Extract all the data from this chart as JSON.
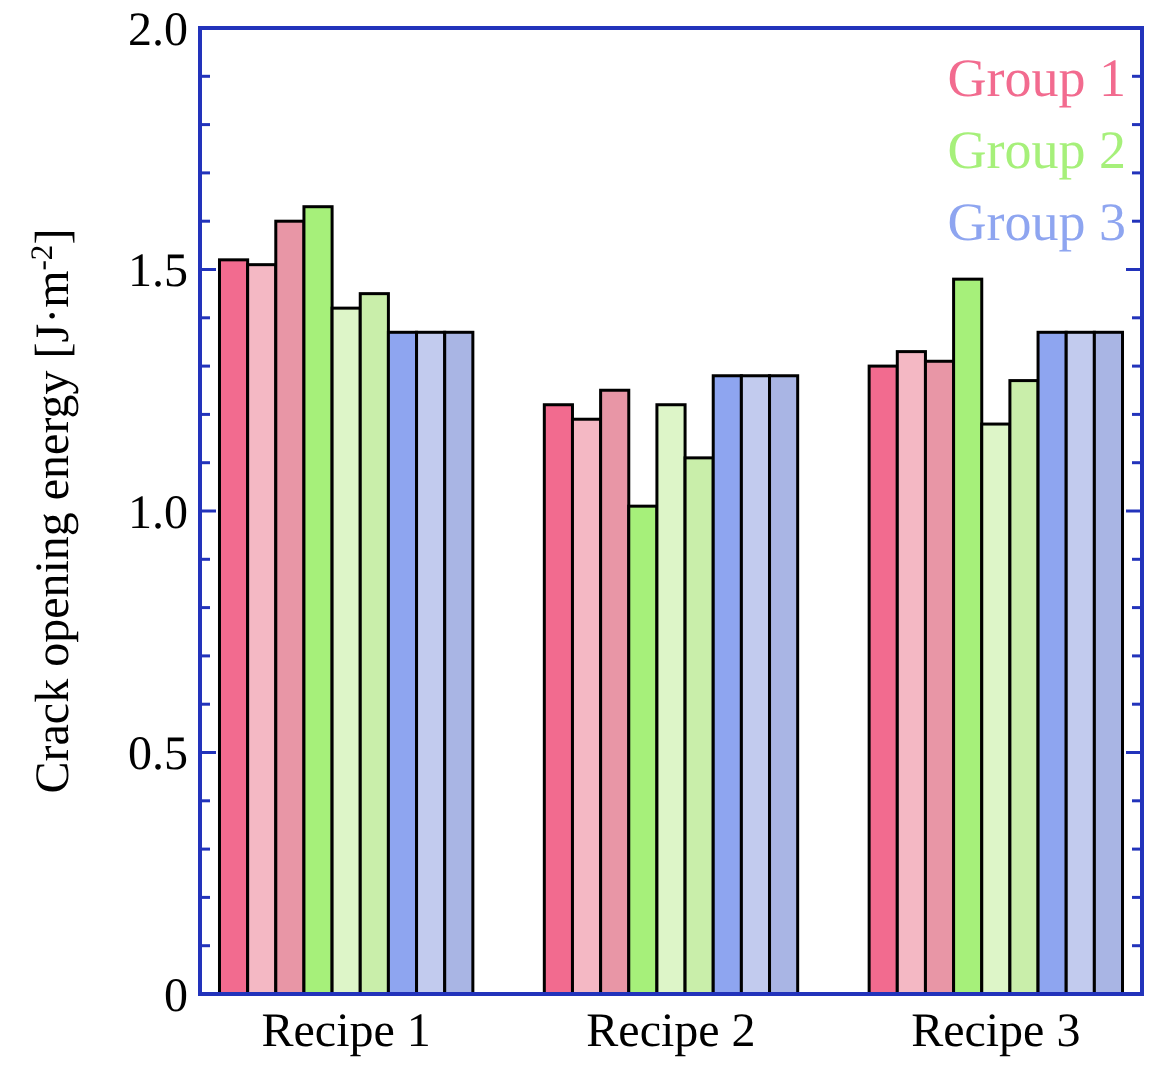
{
  "chart_data": {
    "type": "bar",
    "ylabel": "Crack opening energy [J·m$^{-2}$]",
    "categories": [
      "Recipe 1",
      "Recipe 2",
      "Recipe 3"
    ],
    "series": [
      {
        "name": "Group 1",
        "color": "#f26b8f",
        "values": [
          1.52,
          1.22,
          1.3
        ]
      },
      {
        "color": "#f4b8c4",
        "values": [
          1.51,
          1.19,
          1.33
        ]
      },
      {
        "color": "#e896a6",
        "values": [
          1.6,
          1.25,
          1.31
        ]
      },
      {
        "name": "Group 2",
        "color": "#a6f07a",
        "values": [
          1.63,
          1.01,
          1.48
        ]
      },
      {
        "color": "#ddf5c8",
        "values": [
          1.42,
          1.22,
          1.18
        ]
      },
      {
        "color": "#c9eeaa",
        "values": [
          1.45,
          1.11,
          1.27
        ]
      },
      {
        "name": "Group 3",
        "color": "#8ea5f0",
        "values": [
          1.37,
          1.28,
          1.37
        ]
      },
      {
        "color": "#c2cbee",
        "values": [
          1.37,
          1.28,
          1.37
        ]
      },
      {
        "color": "#a9b5e4",
        "values": [
          1.37,
          1.28,
          1.37
        ]
      }
    ],
    "ylim": [
      0,
      2
    ],
    "yticks": [
      0,
      {
        "value": 0.1,
        "label": null
      },
      {
        "value": 0.2,
        "label": null
      },
      {
        "value": 0.3,
        "label": null
      },
      {
        "value": 0.4,
        "label": null
      },
      {
        "value": 0.5,
        "label": "0.5"
      },
      {
        "value": 0.6,
        "label": null
      },
      {
        "value": 0.7,
        "label": null
      },
      {
        "value": 0.8,
        "label": null
      },
      {
        "value": 0.9,
        "label": null
      },
      {
        "value": 1,
        "label": "1.0"
      },
      {
        "value": 1.1,
        "label": null
      },
      {
        "value": 1.2,
        "label": null
      },
      {
        "value": 1.3,
        "label": null
      },
      {
        "value": 1.4,
        "label": null
      },
      {
        "value": 1.5,
        "label": "1.5"
      },
      {
        "value": 1.6,
        "label": null
      },
      {
        "value": 1.7,
        "label": null
      },
      {
        "value": 1.8,
        "label": null
      },
      {
        "value": 1.9,
        "label": null
      },
      {
        "value": 2,
        "label": "2.0"
      }
    ],
    "grid": false,
    "legend": "top right"
  }
}
